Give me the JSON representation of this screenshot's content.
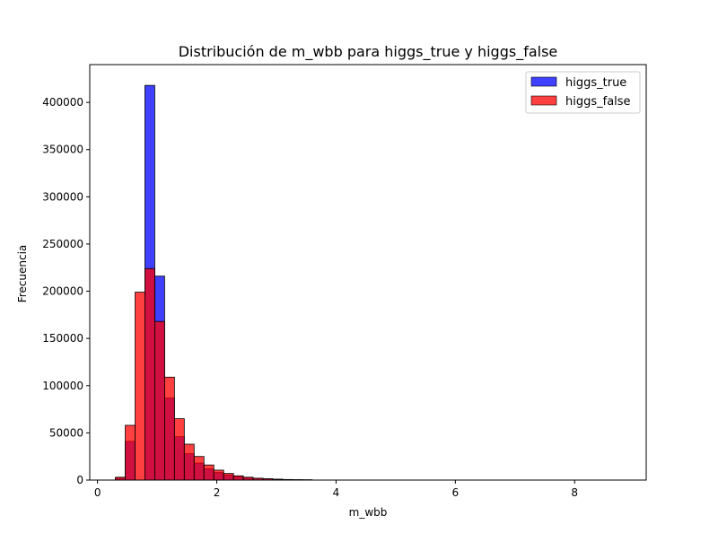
{
  "chart_data": {
    "type": "bar",
    "title": "Distribución de m_wbb para higgs_true y higgs_false",
    "xlabel": "m_wbb",
    "ylabel": "Frecuencia",
    "xlim": [
      -0.13,
      9.2
    ],
    "ylim": [
      0,
      440000
    ],
    "xticks": [
      0,
      2,
      4,
      6,
      8
    ],
    "yticks": [
      0,
      50000,
      100000,
      150000,
      200000,
      250000,
      300000,
      350000,
      400000
    ],
    "bin_width": 0.165,
    "bin_edges_start": 0.3,
    "legend_position": "top-right",
    "series": [
      {
        "name": "higgs_true",
        "color": "#0000ff",
        "values": [
          2000,
          41000,
          0,
          418000,
          216000,
          87000,
          46000,
          28000,
          18000,
          12000,
          8000,
          5500,
          3800,
          2500,
          1800,
          1300,
          900,
          600,
          400,
          300
        ]
      },
      {
        "name": "higgs_false",
        "color": "#ff0000",
        "values": [
          3000,
          58000,
          199000,
          224000,
          168000,
          109000,
          65000,
          38000,
          25000,
          16000,
          10500,
          7000,
          4500,
          3000,
          2000,
          1400,
          900,
          600,
          400,
          300
        ]
      }
    ]
  }
}
